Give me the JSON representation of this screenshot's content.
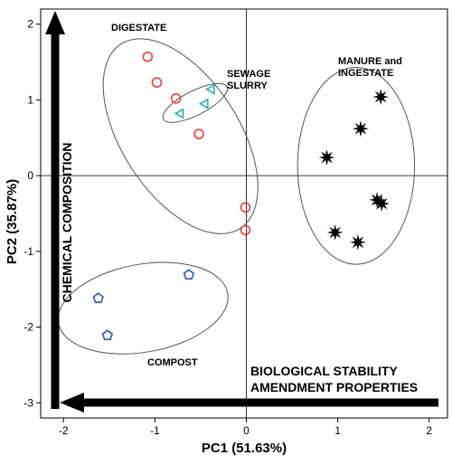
{
  "chart_data": {
    "type": "scatter",
    "title": "",
    "xlabel": "PC1 (51.63%)",
    "ylabel": "PC2 (35.87%)",
    "xlim": [
      -2.25,
      2.2
    ],
    "ylim": [
      -3.2,
      2.2
    ],
    "x_ticks": [
      "-2",
      "-1",
      "0",
      "1",
      "2"
    ],
    "y_ticks": [
      "2",
      "1",
      "0",
      "-1",
      "-2",
      "-3"
    ],
    "grid": false,
    "reference_lines": {
      "x": 0,
      "y": 0
    },
    "colors": {
      "digestate": "#e8403a",
      "sewage": "#2ab3a3",
      "compost": "#3b55a8",
      "manure": "#000000"
    },
    "series": [
      {
        "marker": "circle",
        "points": [
          [
            -1.08,
            1.57
          ],
          [
            -0.98,
            1.23
          ],
          [
            -0.77,
            1.02
          ],
          [
            -0.52,
            0.55
          ],
          [
            -0.01,
            -0.42
          ],
          [
            -0.01,
            -0.72
          ]
        ]
      },
      {
        "marker": "triangle",
        "points": [
          [
            -0.38,
            1.14
          ],
          [
            -0.45,
            0.95
          ],
          [
            -0.72,
            0.82
          ]
        ]
      },
      {
        "marker": "pentagon",
        "points": [
          [
            -0.63,
            -1.31
          ],
          [
            -1.62,
            -1.62
          ],
          [
            -1.52,
            -2.11
          ]
        ]
      },
      {
        "marker": "star",
        "points": [
          [
            1.47,
            1.04
          ],
          [
            1.25,
            0.62
          ],
          [
            0.88,
            0.24
          ],
          [
            1.43,
            -0.32
          ],
          [
            1.48,
            -0.37
          ],
          [
            0.97,
            -0.75
          ],
          [
            1.22,
            -0.88
          ]
        ]
      }
    ],
    "group_labels": [
      "DIGESTATE",
      "SEWAGE",
      "SLURRY",
      "MANURE and",
      "INGESTATE",
      "COMPOST"
    ],
    "arrows": {
      "vertical_label": "CHEMICAL COMPOSITION",
      "horizontal_label_1": "BIOLOGICAL STABILITY",
      "horizontal_label_2": "AMENDMENT PROPERTIES"
    }
  }
}
